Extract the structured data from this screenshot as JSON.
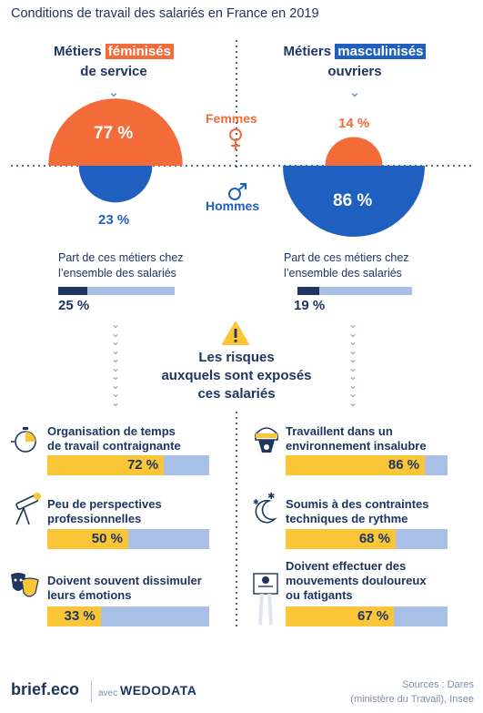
{
  "title": "Conditions de travail des salariés en France en 2019",
  "left_header": {
    "line1_pre": "Métiers ",
    "line1_hl": "féminisés",
    "line2": "de service"
  },
  "right_header": {
    "line1_pre": "Métiers ",
    "line1_hl": "masculinisés",
    "line2": "ouvriers"
  },
  "labels": {
    "femmes": "Femmes",
    "hommes": "Hommes"
  },
  "part_text": {
    "line1": "Part de ces métiers chez",
    "line2": "l’ensemble des salariés"
  },
  "warning_title": {
    "line1": "Les risques",
    "line2": "auxquels sont exposés",
    "line3": "ces salariés"
  },
  "chart_data": [
    {
      "type": "pie",
      "group": "Métiers féminisés de service",
      "series": [
        {
          "name": "Femmes",
          "value": 77,
          "label": "77 %"
        },
        {
          "name": "Hommes",
          "value": 23,
          "label": "23 %"
        }
      ],
      "share_of_employees": {
        "value": 25,
        "label": "25 %"
      }
    },
    {
      "type": "pie",
      "group": "Métiers masculinisés ouvriers",
      "series": [
        {
          "name": "Femmes",
          "value": 14,
          "label": "14 %"
        },
        {
          "name": "Hommes",
          "value": 86,
          "label": "86 %"
        }
      ],
      "share_of_employees": {
        "value": 19,
        "label": "19 %"
      }
    },
    {
      "type": "bar",
      "group": "Métiers féminisés de service",
      "categories": [
        "Organisation de temps de travail contraignante",
        "Peu de perspectives professionnelles",
        "Doivent souvent dissimuler leurs émotions"
      ],
      "values": [
        72,
        50,
        33
      ],
      "labels": [
        "72 %",
        "50 %",
        "33 %"
      ]
    },
    {
      "type": "bar",
      "group": "Métiers masculinisés ouvriers",
      "categories": [
        "Travaillent dans un environnement insalubre",
        "Soumis à des contraintes techniques de rythme",
        "Doivent effectuer des mouvements douloureux ou fatigants"
      ],
      "values": [
        86,
        68,
        67
      ],
      "labels": [
        "86 %",
        "68 %",
        "67 %"
      ]
    }
  ],
  "risks_left": [
    {
      "line1": "Organisation de temps",
      "line2": "de travail contraignante",
      "line3": "",
      "icon": "stopwatch-icon"
    },
    {
      "line1": "Peu de perspectives",
      "line2": "professionnelles",
      "line3": "",
      "icon": "telescope-icon"
    },
    {
      "line1": "Doivent souvent dissimuler",
      "line2": "leurs émotions",
      "line3": "",
      "icon": "masks-icon"
    }
  ],
  "risks_right": [
    {
      "line1": "Travaillent dans un",
      "line2": "environnement insalubre",
      "line3": "",
      "icon": "gas-mask-icon"
    },
    {
      "line1": "Soumis à des contraintes",
      "line2": "techniques de rythme",
      "line3": "",
      "icon": "moon-stars-icon"
    },
    {
      "line1": "Doivent effectuer des",
      "line2": "mouvements douloureux",
      "line3": "ou fatigants",
      "icon": "worker-icon"
    }
  ],
  "footer": {
    "brand": "brief.eco",
    "avec": "avec",
    "partner": "WEDODATA",
    "sources1": "Sources : Dares",
    "sources2": "(ministère du Travail), Insee"
  },
  "colors": {
    "orange": "#f26b38",
    "blue": "#1f5fc0",
    "navy": "#1e3560",
    "lightblue": "#a9c0e6",
    "yellow": "#fac638"
  }
}
